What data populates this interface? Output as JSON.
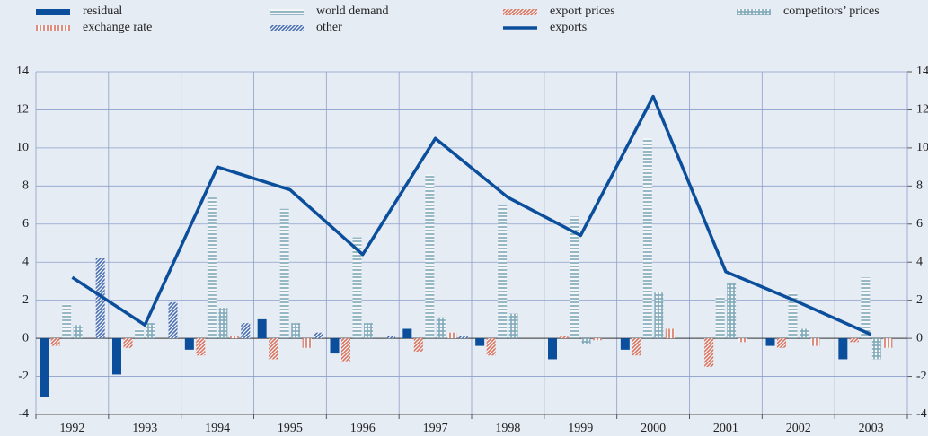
{
  "chart_data": {
    "type": "bar",
    "categories": [
      "1992",
      "1993",
      "1994",
      "1995",
      "1996",
      "1997",
      "1998",
      "1999",
      "2000",
      "2001",
      "2002",
      "2003"
    ],
    "series": [
      {
        "name": "residual",
        "color": "#0b4f9c",
        "pattern": "solid",
        "values": [
          -3.1,
          -1.9,
          -0.6,
          1.0,
          -0.8,
          0.5,
          -0.4,
          -1.1,
          -0.6,
          0,
          -0.4,
          -1.1
        ]
      },
      {
        "name": "export prices",
        "color": "#d9735f",
        "pattern": "diagonal",
        "values": [
          -0.4,
          -0.5,
          -0.9,
          -1.1,
          -1.2,
          -0.7,
          -0.9,
          0.1,
          -0.9,
          -1.5,
          -0.5,
          -0.2
        ]
      },
      {
        "name": "world demand",
        "color": "#7fa9b8",
        "pattern": "hlines",
        "values": [
          1.8,
          0.5,
          7.4,
          6.8,
          5.3,
          8.6,
          7.0,
          6.4,
          10.5,
          2.2,
          2.4,
          3.2
        ]
      },
      {
        "name": "competitors’ prices",
        "color": "#7fa9b8",
        "pattern": "grid",
        "values": [
          0.7,
          0.8,
          1.6,
          0.8,
          0.8,
          1.1,
          1.3,
          -0.3,
          2.4,
          2.9,
          0.5,
          -1.1
        ]
      },
      {
        "name": "exchange rate",
        "color": "#d9735f",
        "pattern": "vlines",
        "values": [
          0,
          0,
          0.1,
          -0.5,
          0,
          0.3,
          0,
          -0.1,
          0.5,
          -0.2,
          -0.4,
          -0.5
        ]
      },
      {
        "name": "other",
        "color": "#4a6fb5",
        "pattern": "diagonal",
        "values": [
          4.2,
          1.9,
          0.8,
          0.3,
          0.1,
          0.1,
          0,
          0,
          0,
          0,
          0,
          0
        ]
      },
      {
        "name": "exports",
        "color": "#0b4f9c",
        "type": "line",
        "values": [
          3.2,
          0.7,
          9.0,
          7.8,
          4.4,
          10.5,
          7.4,
          5.4,
          12.7,
          3.5,
          1.9,
          0.2
        ]
      }
    ],
    "ylim": [
      -4,
      14
    ],
    "yticks": [
      -4,
      -2,
      0,
      2,
      4,
      6,
      8,
      10,
      12,
      14
    ],
    "y2lim": [
      -4,
      14
    ],
    "y2ticks": [
      -4,
      -2,
      0,
      2,
      4,
      6,
      8,
      10,
      12,
      14
    ],
    "grid": true
  }
}
